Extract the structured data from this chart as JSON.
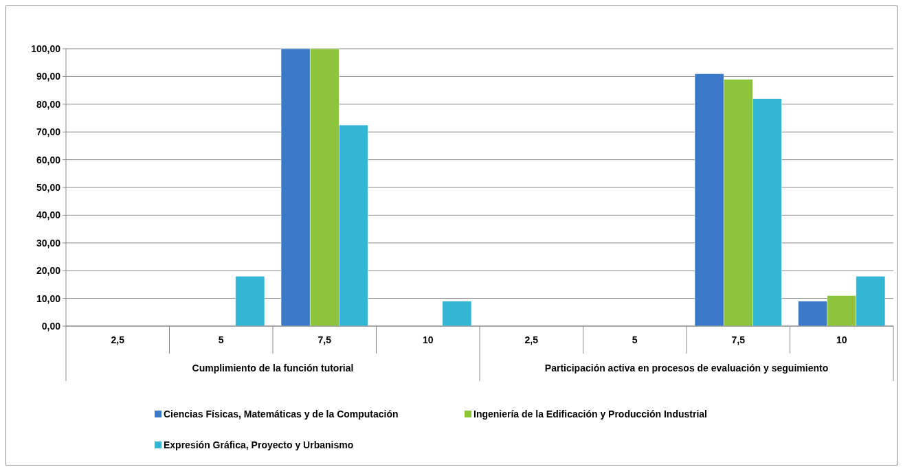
{
  "chart_data": {
    "type": "bar",
    "categories": [
      "2,5",
      "5",
      "7,5",
      "10",
      "2,5",
      "5",
      "7,5",
      "10"
    ],
    "annotations": [
      "Cumplimiento de la función tutorial",
      "Participación activa en procesos de evaluación y seguimiento"
    ],
    "series": [
      {
        "name": "Ciencias Físicas, Matemáticas y de la Computación",
        "color": "#3a78c9",
        "values": [
          0,
          0,
          100,
          0,
          0,
          0,
          91,
          9
        ]
      },
      {
        "name": "Ingeniería de la Edificación y Producción Industrial",
        "color": "#8cc43c",
        "values": [
          0,
          0,
          100,
          0,
          0,
          0,
          89,
          11
        ]
      },
      {
        "name": "Expresión Gráfica, Proyecto y Urbanismo",
        "color": "#31b6d6",
        "values": [
          0,
          18,
          72.5,
          9,
          0,
          0,
          82,
          18
        ]
      }
    ],
    "ylim": [
      0,
      100
    ],
    "yticks": [
      {
        "value": 0,
        "label": "0,00"
      },
      {
        "value": 10,
        "label": "10,00"
      },
      {
        "value": 20,
        "label": "20,00"
      },
      {
        "value": 30,
        "label": "30,00"
      },
      {
        "value": 40,
        "label": "40,00"
      },
      {
        "value": 50,
        "label": "50,00"
      },
      {
        "value": 60,
        "label": "60,00"
      },
      {
        "value": 70,
        "label": "70,00"
      },
      {
        "value": 80,
        "label": "80,00"
      },
      {
        "value": 90,
        "label": "90,00"
      },
      {
        "value": 100,
        "label": "100,00"
      }
    ],
    "grid": "y",
    "legend": "bottom"
  }
}
